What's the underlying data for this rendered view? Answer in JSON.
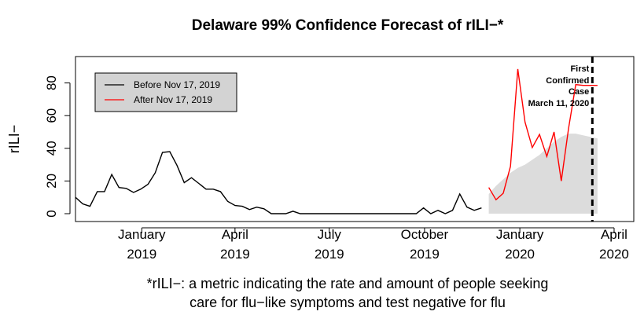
{
  "chart_data": {
    "type": "line",
    "title": "Delaware 99% Confidence Forecast of rILI−*",
    "ylabel": "rILI−",
    "xlabel": "",
    "ylim": [
      0,
      90
    ],
    "xlim": [
      "2018-10-29",
      "2020-04-20"
    ],
    "y_ticks": [
      0,
      20,
      40,
      60,
      80
    ],
    "x_ticks": [
      {
        "date": "2019-01-01",
        "line1": "January",
        "line2": "2019"
      },
      {
        "date": "2019-04-01",
        "line1": "April",
        "line2": "2019"
      },
      {
        "date": "2019-07-01",
        "line1": "July",
        "line2": "2019"
      },
      {
        "date": "2019-10-01",
        "line1": "October",
        "line2": "2019"
      },
      {
        "date": "2020-01-01",
        "line1": "January",
        "line2": "2020"
      },
      {
        "date": "2020-04-01",
        "line1": "April",
        "line2": "2020"
      }
    ],
    "grid": false,
    "legend_position": "top-left",
    "series": [
      {
        "name": "Before Nov 17, 2019",
        "color": "#000000",
        "points": [
          [
            "2018-10-29",
            10
          ],
          [
            "2018-11-05",
            6
          ],
          [
            "2018-11-12",
            4.5
          ],
          [
            "2018-11-19",
            13.5
          ],
          [
            "2018-11-26",
            13.5
          ],
          [
            "2018-12-03",
            24
          ],
          [
            "2018-12-10",
            16
          ],
          [
            "2018-12-17",
            15.5
          ],
          [
            "2018-12-24",
            13
          ],
          [
            "2018-12-31",
            15
          ],
          [
            "2019-01-07",
            18
          ],
          [
            "2019-01-14",
            25
          ],
          [
            "2019-01-21",
            37.5
          ],
          [
            "2019-01-28",
            38
          ],
          [
            "2019-02-04",
            29.5
          ],
          [
            "2019-02-11",
            19
          ],
          [
            "2019-02-18",
            22
          ],
          [
            "2019-02-25",
            18.5
          ],
          [
            "2019-03-04",
            15
          ],
          [
            "2019-03-11",
            15
          ],
          [
            "2019-03-18",
            13.5
          ],
          [
            "2019-03-25",
            7.5
          ],
          [
            "2019-04-01",
            5
          ],
          [
            "2019-04-08",
            4.5
          ],
          [
            "2019-04-15",
            2.5
          ],
          [
            "2019-04-22",
            4
          ],
          [
            "2019-04-29",
            3
          ],
          [
            "2019-05-06",
            0
          ],
          [
            "2019-05-13",
            0
          ],
          [
            "2019-05-20",
            0
          ],
          [
            "2019-05-27",
            1.5
          ],
          [
            "2019-06-03",
            0
          ],
          [
            "2019-06-10",
            0
          ],
          [
            "2019-06-17",
            0
          ],
          [
            "2019-06-24",
            0
          ],
          [
            "2019-07-01",
            0
          ],
          [
            "2019-07-08",
            0
          ],
          [
            "2019-07-15",
            0
          ],
          [
            "2019-07-22",
            0
          ],
          [
            "2019-07-29",
            0
          ],
          [
            "2019-08-05",
            0
          ],
          [
            "2019-08-12",
            0
          ],
          [
            "2019-08-19",
            0
          ],
          [
            "2019-08-26",
            0
          ],
          [
            "2019-09-02",
            0
          ],
          [
            "2019-09-09",
            0
          ],
          [
            "2019-09-16",
            0
          ],
          [
            "2019-09-23",
            0
          ],
          [
            "2019-09-30",
            3.5
          ],
          [
            "2019-10-07",
            0
          ],
          [
            "2019-10-14",
            2
          ],
          [
            "2019-10-21",
            0
          ],
          [
            "2019-10-28",
            2
          ],
          [
            "2019-11-04",
            12
          ],
          [
            "2019-11-11",
            4
          ],
          [
            "2019-11-18",
            2
          ],
          [
            "2019-11-25",
            3.5
          ]
        ]
      },
      {
        "name": "After Nov 17, 2019",
        "color": "#ff0000",
        "points": [
          [
            "2019-12-02",
            16
          ],
          [
            "2019-12-09",
            8.5
          ],
          [
            "2019-12-16",
            12.5
          ],
          [
            "2019-12-23",
            29
          ],
          [
            "2019-12-30",
            88.5
          ],
          [
            "2020-01-06",
            56
          ],
          [
            "2020-01-13",
            40.5
          ],
          [
            "2020-01-20",
            48.5
          ],
          [
            "2020-01-27",
            35
          ],
          [
            "2020-02-03",
            50
          ],
          [
            "2020-02-10",
            20
          ],
          [
            "2020-02-17",
            52
          ],
          [
            "2020-02-24",
            79
          ],
          [
            "2020-03-02",
            78.5
          ],
          [
            "2020-03-09",
            78.5
          ],
          [
            "2020-03-16",
            78.5
          ]
        ]
      }
    ],
    "forecast_band": {
      "color": "#dcdcdc",
      "upper": [
        [
          "2019-12-02",
          12
        ],
        [
          "2019-12-09",
          17
        ],
        [
          "2019-12-16",
          21
        ],
        [
          "2019-12-23",
          25
        ],
        [
          "2019-12-30",
          28
        ],
        [
          "2020-01-06",
          30
        ],
        [
          "2020-01-13",
          33
        ],
        [
          "2020-01-20",
          36
        ],
        [
          "2020-01-27",
          40
        ],
        [
          "2020-02-03",
          44
        ],
        [
          "2020-02-10",
          47
        ],
        [
          "2020-02-17",
          49
        ],
        [
          "2020-02-24",
          49
        ],
        [
          "2020-03-02",
          48
        ],
        [
          "2020-03-09",
          47
        ],
        [
          "2020-03-16",
          46
        ]
      ],
      "lower": [
        [
          "2019-12-02",
          0
        ],
        [
          "2020-03-16",
          0
        ]
      ]
    },
    "event_line": {
      "date": "2020-03-11",
      "label_lines": [
        "First",
        "Confirmed",
        "Case",
        "March 11, 2020"
      ]
    },
    "footnote": [
      "*rILI−: a metric indicating the rate and amount of people seeking",
      "care for flu−like symptoms and test negative for flu"
    ]
  }
}
